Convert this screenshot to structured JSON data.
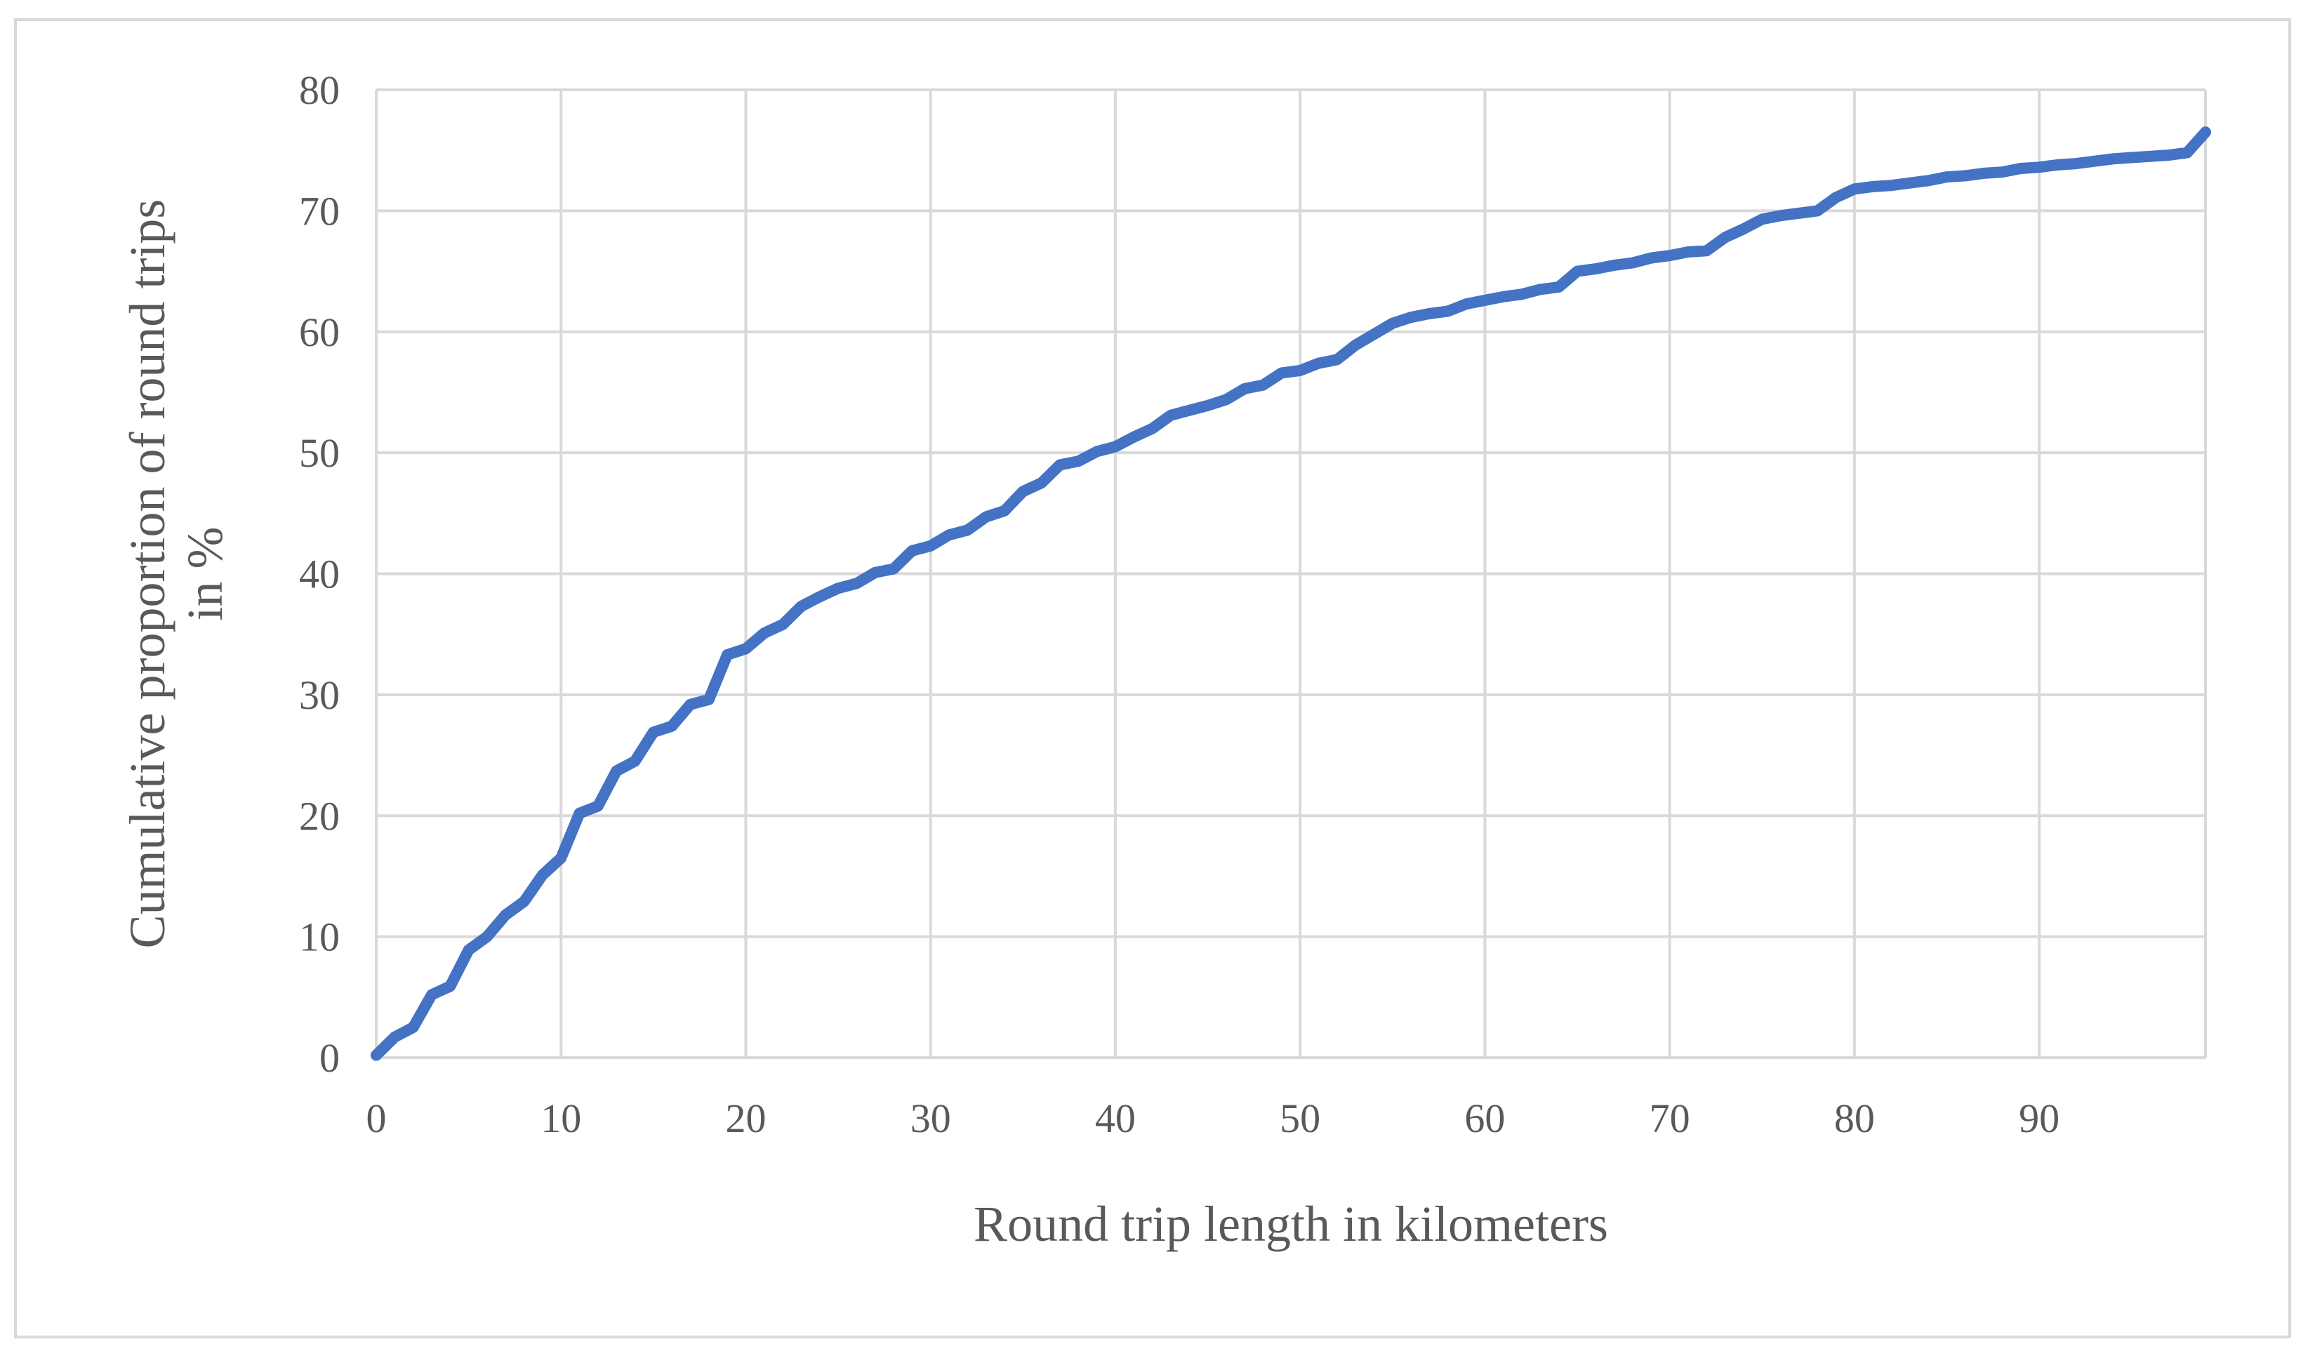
{
  "chart_data": {
    "type": "line",
    "title": "",
    "xlabel": "Round trip length in kilometers",
    "ylabel": "Cumulative proportion of round trips in %",
    "ylabel_lines": [
      "Cumulative proportion of round trips",
      "in %"
    ],
    "xlim": [
      0,
      99
    ],
    "ylim": [
      0,
      80
    ],
    "x_ticks": [
      0,
      10,
      20,
      30,
      40,
      50,
      60,
      70,
      80,
      90
    ],
    "y_ticks": [
      0,
      10,
      20,
      30,
      40,
      50,
      60,
      70,
      80
    ],
    "grid": true,
    "legend": "none",
    "series": [
      {
        "color": "#4472c4",
        "x": [
          0,
          1,
          2,
          3,
          4,
          5,
          6,
          7,
          8,
          9,
          10,
          11,
          12,
          13,
          14,
          15,
          16,
          17,
          18,
          19,
          20,
          21,
          22,
          23,
          24,
          25,
          26,
          27,
          28,
          29,
          30,
          31,
          32,
          33,
          34,
          35,
          36,
          37,
          38,
          39,
          40,
          41,
          42,
          43,
          44,
          45,
          46,
          47,
          48,
          49,
          50,
          51,
          52,
          53,
          54,
          55,
          56,
          57,
          58,
          59,
          60,
          61,
          62,
          63,
          64,
          65,
          66,
          67,
          68,
          69,
          70,
          71,
          72,
          73,
          74,
          75,
          76,
          77,
          78,
          79,
          80,
          81,
          82,
          83,
          84,
          85,
          86,
          87,
          88,
          89,
          90,
          91,
          92,
          93,
          94,
          95,
          96,
          97,
          98,
          99
        ],
        "values": [
          0.2,
          1.7,
          2.5,
          5.2,
          5.9,
          8.9,
          10.0,
          11.8,
          12.9,
          15.1,
          16.5,
          20.2,
          20.8,
          23.7,
          24.5,
          26.9,
          27.4,
          29.2,
          29.6,
          33.3,
          33.8,
          35.1,
          35.8,
          37.3,
          38.1,
          38.8,
          39.2,
          40.1,
          40.4,
          41.9,
          42.3,
          43.2,
          43.6,
          44.7,
          45.2,
          46.8,
          47.5,
          49.0,
          49.3,
          50.1,
          50.5,
          51.3,
          52.0,
          53.1,
          53.5,
          53.9,
          54.4,
          55.3,
          55.6,
          56.6,
          56.8,
          57.4,
          57.7,
          58.9,
          59.8,
          60.7,
          61.2,
          61.5,
          61.7,
          62.3,
          62.6,
          62.9,
          63.1,
          63.5,
          63.7,
          65.0,
          65.2,
          65.5,
          65.7,
          66.1,
          66.3,
          66.6,
          66.7,
          67.8,
          68.5,
          69.3,
          69.6,
          69.8,
          70.0,
          71.1,
          71.8,
          72.0,
          72.1,
          72.3,
          72.5,
          72.8,
          72.9,
          73.1,
          73.2,
          73.5,
          73.6,
          73.8,
          73.9,
          74.1,
          74.3,
          74.4,
          74.5,
          74.6,
          74.8,
          76.5
        ]
      }
    ]
  }
}
